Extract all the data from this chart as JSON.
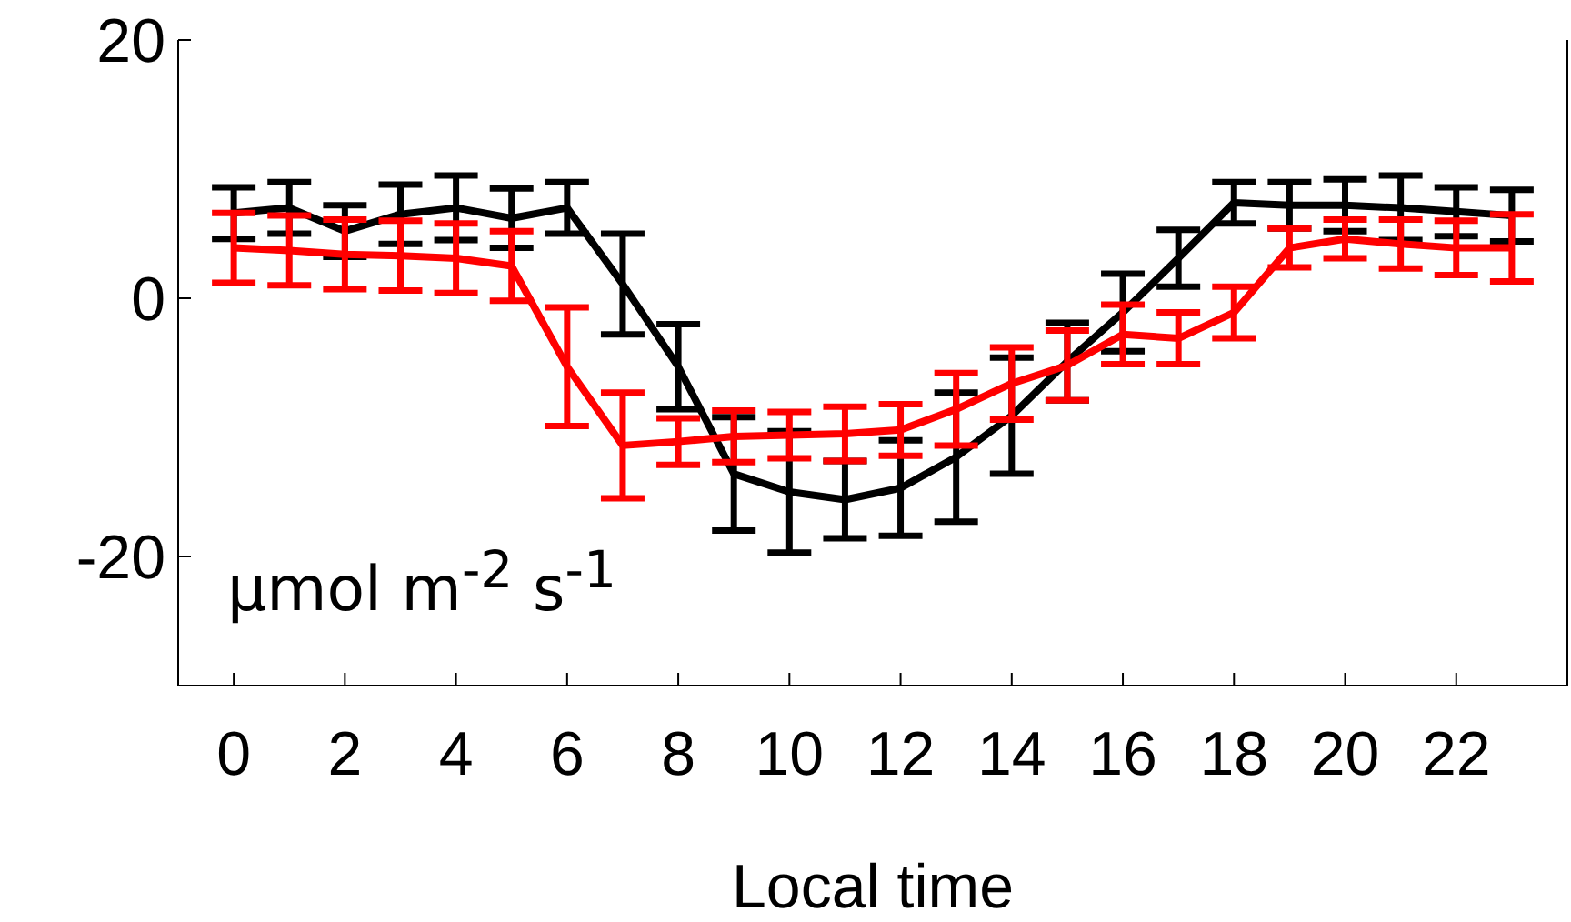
{
  "chart_data": {
    "type": "line",
    "xlabel": "Local time",
    "annotations": [
      "μmol m$^{-2}$ s$^{-1}$"
    ],
    "x": [
      0,
      1,
      2,
      3,
      4,
      5,
      6,
      7,
      8,
      9,
      10,
      11,
      12,
      13,
      14,
      15,
      16,
      17,
      18,
      19,
      20,
      21,
      22,
      23
    ],
    "xlim": [
      -1,
      24
    ],
    "xticks": [
      0,
      2,
      4,
      6,
      8,
      10,
      12,
      14,
      16,
      18,
      20,
      22
    ],
    "ylim": [
      -30,
      20
    ],
    "yticks": [
      -20,
      0,
      20
    ],
    "grid": false,
    "legend": false,
    "marker": "none",
    "line_style": "solid",
    "series": [
      {
        "color": "#000000",
        "values": [
          6.6,
          7,
          5.2,
          6.5,
          7,
          6.2,
          7,
          1.1,
          -5.3,
          -13.6,
          -15,
          -15.6,
          -14.7,
          -12.3,
          -9.1,
          -4.9,
          -1.1,
          3.1,
          7.4,
          7.2,
          7.2,
          7,
          6.7,
          6.4
        ],
        "errors": [
          2,
          2,
          2,
          2.3,
          2.5,
          2.3,
          2,
          3.9,
          3.3,
          4.4,
          4.7,
          3,
          3.7,
          5,
          4.5,
          3,
          3,
          2.2,
          1.6,
          1.8,
          2,
          2.5,
          1.9,
          2
        ]
      },
      {
        "color": "#ff0000",
        "values": [
          3.9,
          3.7,
          3.4,
          3.3,
          3.1,
          2.5,
          -5.3,
          -11.4,
          -11.1,
          -10.7,
          -10.6,
          -10.5,
          -10.2,
          -8.6,
          -6.6,
          -5.2,
          -2.8,
          -3.1,
          -1.1,
          3.9,
          4.6,
          4.2,
          3.9,
          3.9
        ],
        "errors": [
          2.7,
          2.7,
          2.7,
          2.7,
          2.7,
          2.7,
          4.6,
          4.1,
          1.8,
          2,
          1.8,
          2.1,
          2,
          2.8,
          2.8,
          2.7,
          2.3,
          2,
          2,
          1.5,
          1.5,
          1.9,
          2.1,
          2.6
        ]
      }
    ]
  }
}
